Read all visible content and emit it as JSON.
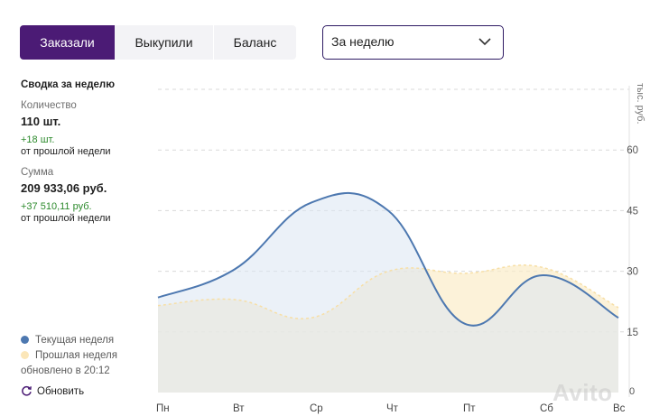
{
  "tabs": [
    {
      "label": "Заказали",
      "active": true
    },
    {
      "label": "Выкупили",
      "active": false
    },
    {
      "label": "Баланс",
      "active": false
    }
  ],
  "period_select": {
    "value": "За неделю"
  },
  "summary": {
    "title": "Сводка за неделю",
    "quantity_label": "Количество",
    "quantity_value": "110 шт.",
    "quantity_change": "+18 шт.",
    "quantity_change_note": "от прошлой недели",
    "sum_label": "Сумма",
    "sum_value": "209 933,06 руб.",
    "sum_change": "+37 510,11 руб.",
    "sum_change_note": "от прошлой недели"
  },
  "legend": {
    "current_week": "Текущая неделя",
    "previous_week": "Прошлая неделя",
    "updated": "обновлено в 20:12"
  },
  "refresh_label": "Обновить",
  "watermark": "Avito",
  "colors": {
    "accent": "#4b1b75",
    "current": "#4d78b0",
    "previous": "#fbecc9",
    "positive": "#2c8a2c"
  },
  "chart_data": {
    "type": "area",
    "categories": [
      "Пн",
      "Вт",
      "Ср",
      "Чт",
      "Пт",
      "Сб",
      "Вс"
    ],
    "ylabel": "тыс. руб.",
    "yticks": [
      0,
      15,
      30,
      45,
      60
    ],
    "ylim": [
      0,
      75
    ],
    "grid": true,
    "series": [
      {
        "name": "Текущая неделя",
        "values": [
          23.5,
          30.5,
          47,
          45,
          17,
          29,
          18.5
        ]
      },
      {
        "name": "Прошлая неделя",
        "values": [
          21.5,
          23,
          18.5,
          30,
          29.5,
          31,
          21
        ]
      }
    ]
  }
}
